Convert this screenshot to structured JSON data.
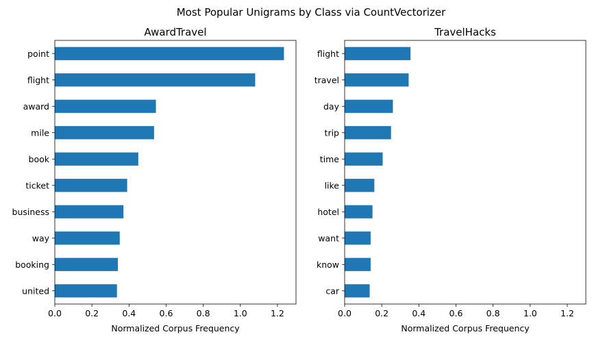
{
  "suptitle": "Most Popular Unigrams by Class via CountVectorizer",
  "chart_data": [
    {
      "type": "bar",
      "orientation": "horizontal",
      "title": "AwardTravel",
      "xlabel": "Normalized Corpus Frequency",
      "ylabel": "",
      "categories": [
        "point",
        "flight",
        "award",
        "mile",
        "book",
        "ticket",
        "business",
        "way",
        "booking",
        "united"
      ],
      "values": [
        1.235,
        1.08,
        0.545,
        0.535,
        0.45,
        0.39,
        0.37,
        0.35,
        0.34,
        0.335
      ],
      "xlim": [
        0,
        1.3
      ],
      "xticks": [
        0.0,
        0.2,
        0.4,
        0.6,
        0.8,
        1.0,
        1.2
      ],
      "xtick_labels": [
        "0.0",
        "0.2",
        "0.4",
        "0.6",
        "0.8",
        "1.0",
        "1.2"
      ],
      "bar_color": "#1f77b4",
      "grid": false
    },
    {
      "type": "bar",
      "orientation": "horizontal",
      "title": "TravelHacks",
      "xlabel": "Normalized Corpus Frequency",
      "ylabel": "",
      "categories": [
        "flight",
        "travel",
        "day",
        "trip",
        "time",
        "like",
        "hotel",
        "want",
        "know",
        "car"
      ],
      "values": [
        0.355,
        0.345,
        0.26,
        0.25,
        0.205,
        0.16,
        0.15,
        0.14,
        0.14,
        0.135
      ],
      "xlim": [
        0,
        1.3
      ],
      "xticks": [
        0.0,
        0.2,
        0.4,
        0.6,
        0.8,
        1.0,
        1.2
      ],
      "xtick_labels": [
        "0.0",
        "0.2",
        "0.4",
        "0.6",
        "0.8",
        "1.0",
        "1.2"
      ],
      "bar_color": "#1f77b4",
      "grid": false
    }
  ]
}
